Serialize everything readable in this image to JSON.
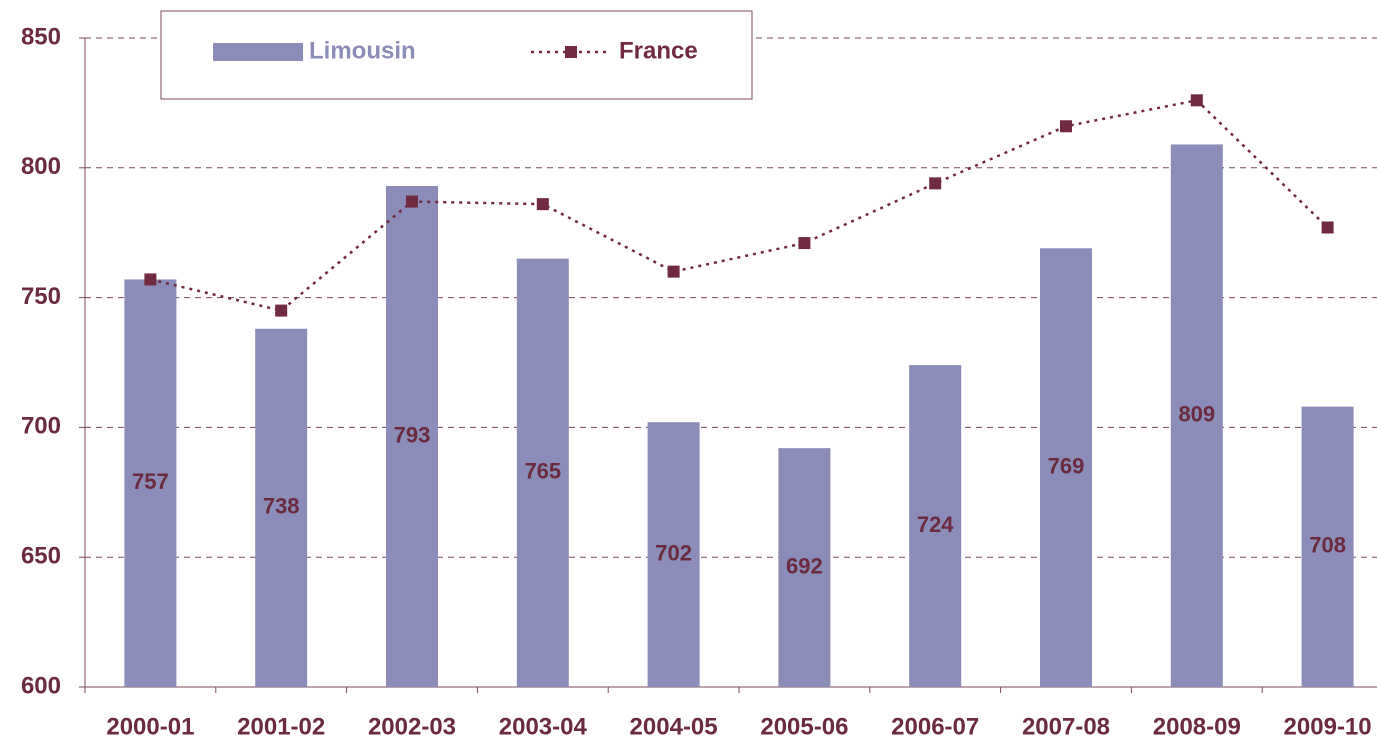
{
  "chart_data": {
    "type": "bar",
    "categories": [
      "2000-01",
      "2001-02",
      "2002-03",
      "2003-04",
      "2004-05",
      "2005-06",
      "2006-07",
      "2007-08",
      "2008-09",
      "2009-10"
    ],
    "series": [
      {
        "name": "Limousin",
        "color": "#8c8cb8",
        "values": [
          757,
          738,
          793,
          765,
          702,
          692,
          724,
          769,
          809,
          708
        ]
      },
      {
        "name": "France",
        "color": "#722a40",
        "type": "line",
        "values": [
          757,
          745,
          787,
          786,
          760,
          771,
          794,
          816,
          826,
          777
        ]
      }
    ],
    "ylim": [
      600,
      850
    ],
    "yticks": [
      600,
      650,
      700,
      750,
      800,
      850
    ],
    "grid": true,
    "legend": "top-left"
  }
}
